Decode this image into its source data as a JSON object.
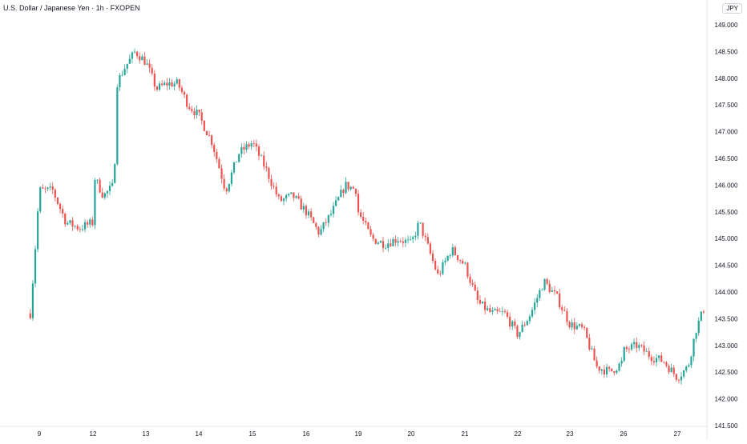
{
  "header": {
    "symbol_title": "U.S. Dollar / Japanese Yen · 1h · FXOPEN",
    "currency": "JPY"
  },
  "colors": {
    "up": "#26a69a",
    "down": "#ef5350",
    "axis_text": "#131722",
    "axis_line": "#e0e3eb",
    "background": "#ffffff"
  },
  "chart_data": {
    "type": "candlestick",
    "title": "U.S. Dollar / Japanese Yen · 1h · FXOPEN",
    "ylabel": "JPY",
    "ylim": [
      141.5,
      149.2
    ],
    "grid": false,
    "y_ticks": [
      "141.500",
      "142.000",
      "142.500",
      "143.000",
      "143.500",
      "144.000",
      "144.500",
      "145.000",
      "145.500",
      "146.000",
      "146.500",
      "147.000",
      "147.500",
      "148.000",
      "148.500",
      "149.000"
    ],
    "x_ticks": [
      "9",
      "12",
      "13",
      "14",
      "15",
      "16",
      "19",
      "20",
      "21",
      "22",
      "23",
      "26",
      "27"
    ],
    "close_path": [
      [
        8.5,
        143.6
      ],
      [
        8.75,
        144.7
      ],
      [
        9.0,
        145.9
      ],
      [
        9.25,
        145.9
      ],
      [
        9.5,
        145.3
      ],
      [
        9.75,
        145.2
      ],
      [
        10.0,
        145.3
      ],
      [
        12.0,
        146.2
      ],
      [
        12.2,
        145.8
      ],
      [
        12.4,
        146.0
      ],
      [
        12.45,
        147.9
      ],
      [
        12.6,
        148.2
      ],
      [
        12.8,
        148.5
      ],
      [
        13.0,
        148.3
      ],
      [
        13.2,
        147.8
      ],
      [
        13.4,
        147.9
      ],
      [
        13.6,
        147.9
      ],
      [
        13.8,
        147.5
      ],
      [
        14.0,
        147.3
      ],
      [
        14.25,
        146.8
      ],
      [
        14.5,
        145.9
      ],
      [
        14.75,
        146.6
      ],
      [
        15.0,
        146.8
      ],
      [
        15.25,
        146.3
      ],
      [
        15.5,
        145.7
      ],
      [
        15.75,
        145.8
      ],
      [
        16.0,
        145.5
      ],
      [
        16.25,
        145.1
      ],
      [
        16.5,
        145.5
      ],
      [
        16.75,
        146.0
      ],
      [
        17.0,
        145.9
      ],
      [
        19.0,
        145.5
      ],
      [
        19.25,
        145.0
      ],
      [
        19.5,
        144.9
      ],
      [
        19.75,
        145.0
      ],
      [
        20.0,
        144.9
      ],
      [
        20.15,
        145.3
      ],
      [
        20.5,
        144.3
      ],
      [
        20.75,
        144.8
      ],
      [
        21.0,
        144.5
      ],
      [
        21.25,
        143.8
      ],
      [
        21.5,
        143.6
      ],
      [
        21.75,
        143.6
      ],
      [
        22.0,
        143.2
      ],
      [
        22.25,
        143.6
      ],
      [
        22.5,
        144.2
      ],
      [
        22.75,
        143.9
      ],
      [
        23.0,
        143.4
      ],
      [
        23.25,
        143.3
      ],
      [
        23.5,
        142.6
      ],
      [
        23.75,
        142.5
      ],
      [
        24.0,
        142.7
      ],
      [
        26.0,
        142.9
      ],
      [
        26.25,
        143.0
      ],
      [
        26.5,
        142.8
      ],
      [
        26.75,
        142.7
      ],
      [
        27.0,
        142.4
      ],
      [
        27.2,
        142.6
      ],
      [
        27.35,
        143.3
      ],
      [
        27.5,
        143.7
      ]
    ],
    "price_range": {
      "low": 142.1,
      "high": 148.65
    }
  }
}
